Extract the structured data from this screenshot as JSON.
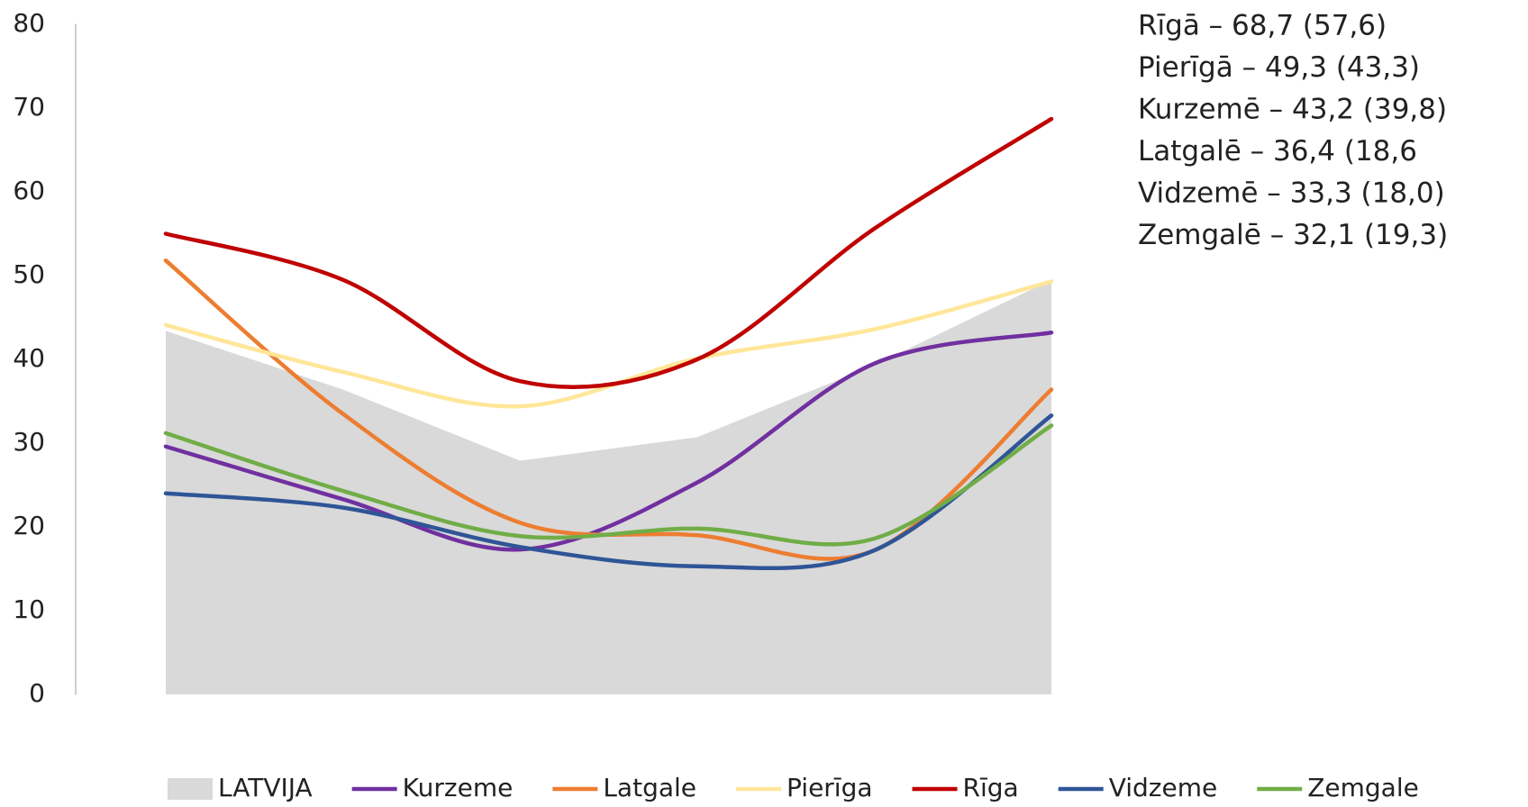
{
  "chart_data": {
    "type": "line",
    "categories": [
      null,
      null,
      null,
      null,
      null,
      null
    ],
    "series": [
      {
        "name": "LATVIJA",
        "color": "#d9d9d9",
        "area": true,
        "values": [
          43.4,
          36.4,
          27.9,
          30.7,
          39.3,
          49.5
        ]
      },
      {
        "name": "Kurzeme",
        "color": "#7030a0",
        "values": [
          29.6,
          23.3,
          17.3,
          25.3,
          39.5,
          43.2
        ]
      },
      {
        "name": "Latgale",
        "color": "#ed7d31",
        "values": [
          51.8,
          33.5,
          20.5,
          19.0,
          17.2,
          36.4
        ]
      },
      {
        "name": "Pierīga",
        "color": "#ffe699",
        "values": [
          44.1,
          38.5,
          34.4,
          40.1,
          43.6,
          49.3
        ]
      },
      {
        "name": "Rīga",
        "color": "#c00000",
        "values": [
          55.0,
          49.5,
          37.4,
          40.0,
          55.6,
          68.7
        ]
      },
      {
        "name": "Vidzeme",
        "color": "#2f5597",
        "values": [
          24.0,
          22.3,
          17.6,
          15.3,
          17.2,
          33.3
        ]
      },
      {
        "name": "Zemgale",
        "color": "#70ad47",
        "values": [
          31.2,
          24.3,
          18.9,
          19.8,
          18.6,
          32.1
        ]
      }
    ],
    "ylim": [
      0,
      80
    ],
    "yticks": [
      0,
      10,
      20,
      30,
      40,
      50,
      60,
      70,
      80
    ],
    "annotations": [
      "Rīgā – 68,7 (57,6)",
      "Pierīgā – 49,3 (43,3)",
      "Kurzemē – 43,2 (39,8)",
      "Latgalē – 36,4 (18,6",
      "Vidzemē – 33,3 (18,0)",
      "Zemgalē – 32,1 (19,3)"
    ],
    "legend": "bottom"
  }
}
